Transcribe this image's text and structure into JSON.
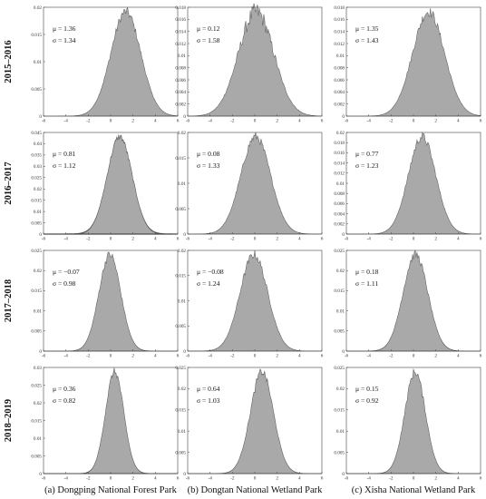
{
  "chart_data": {
    "type": "histogram-grid",
    "row_labels": [
      "2015–2016",
      "2016–2017",
      "2017–2018",
      "2018–2019"
    ],
    "column_labels": [
      "(a) Dongping National Forest Park",
      "(b) Dongtan National Wetland Park",
      "(c) Xisha National Wetland Park"
    ],
    "x_range": [
      -6,
      6
    ],
    "x_ticks": [
      "-6",
      "-4",
      "-2",
      "0",
      "2",
      "4",
      "6"
    ],
    "fill_color": "#a9a9a9",
    "edge_color": "#555555",
    "panels": [
      {
        "row": 0,
        "col": 0,
        "mu_label": "μ = 1.36",
        "sigma_label": "σ = 1.34",
        "mu": 1.36,
        "sigma": 1.34,
        "y_max": 0.02,
        "y_ticks": [
          "0",
          "0.005",
          "0.01",
          "0.015",
          "0.02"
        ]
      },
      {
        "row": 0,
        "col": 1,
        "mu_label": "μ = 0.12",
        "sigma_label": "σ = 1.58",
        "mu": 0.12,
        "sigma": 1.58,
        "y_max": 0.018,
        "y_ticks": [
          "0",
          "0.002",
          "0.004",
          "0.006",
          "0.008",
          "0.01",
          "0.012",
          "0.014",
          "0.016",
          "0.018"
        ]
      },
      {
        "row": 0,
        "col": 2,
        "mu_label": "μ = 1.35",
        "sigma_label": "σ = 1.43",
        "mu": 1.35,
        "sigma": 1.43,
        "y_max": 0.018,
        "y_ticks": [
          "0",
          "0.002",
          "0.004",
          "0.006",
          "0.008",
          "0.01",
          "0.012",
          "0.014",
          "0.016",
          "0.018"
        ]
      },
      {
        "row": 1,
        "col": 0,
        "mu_label": "μ = 0.81",
        "sigma_label": "σ = 1.12",
        "mu": 0.81,
        "sigma": 1.12,
        "y_max": 0.045,
        "y_ticks": [
          "0",
          "0.005",
          "0.01",
          "0.015",
          "0.02",
          "0.025",
          "0.03",
          "0.035",
          "0.04",
          "0.045"
        ]
      },
      {
        "row": 1,
        "col": 1,
        "mu_label": "μ = 0.08",
        "sigma_label": "σ = 1.33",
        "mu": 0.08,
        "sigma": 1.33,
        "y_max": 0.02,
        "y_ticks": [
          "0",
          "0.005",
          "0.01",
          "0.015",
          "0.02"
        ]
      },
      {
        "row": 1,
        "col": 2,
        "mu_label": "μ = 0.77",
        "sigma_label": "σ = 1.23",
        "mu": 0.77,
        "sigma": 1.23,
        "y_max": 0.02,
        "y_ticks": [
          "0",
          "0.002",
          "0.004",
          "0.006",
          "0.008",
          "0.01",
          "0.012",
          "0.014",
          "0.016",
          "0.018",
          "0.02"
        ]
      },
      {
        "row": 2,
        "col": 0,
        "mu_label": "μ = −0.07",
        "sigma_label": "σ = 0.98",
        "mu": -0.07,
        "sigma": 0.98,
        "y_max": 0.025,
        "y_ticks": [
          "0",
          "0.005",
          "0.01",
          "0.015",
          "0.02",
          "0.025"
        ]
      },
      {
        "row": 2,
        "col": 1,
        "mu_label": "μ = −0.08",
        "sigma_label": "σ = 1.24",
        "mu": -0.08,
        "sigma": 1.24,
        "y_max": 0.02,
        "y_ticks": [
          "0",
          "0.005",
          "0.01",
          "0.015",
          "0.02"
        ]
      },
      {
        "row": 2,
        "col": 2,
        "mu_label": "μ = 0.18",
        "sigma_label": "σ = 1.11",
        "mu": 0.18,
        "sigma": 1.11,
        "y_max": 0.025,
        "y_ticks": [
          "0",
          "0.005",
          "0.01",
          "0.015",
          "0.02",
          "0.025"
        ]
      },
      {
        "row": 3,
        "col": 0,
        "mu_label": "μ = 0.36",
        "sigma_label": "σ = 0.82",
        "mu": 0.36,
        "sigma": 0.82,
        "y_max": 0.03,
        "y_ticks": [
          "0",
          "0.005",
          "0.01",
          "0.015",
          "0.02",
          "0.025",
          "0.03"
        ]
      },
      {
        "row": 3,
        "col": 1,
        "mu_label": "μ = 0.64",
        "sigma_label": "σ = 1.03",
        "mu": 0.64,
        "sigma": 1.03,
        "y_max": 0.025,
        "y_ticks": [
          "0",
          "0.005",
          "0.01",
          "0.015",
          "0.02",
          "0.025"
        ]
      },
      {
        "row": 3,
        "col": 2,
        "mu_label": "μ = 0.15",
        "sigma_label": "σ = 0.92",
        "mu": 0.15,
        "sigma": 0.92,
        "y_max": 0.025,
        "y_ticks": [
          "0",
          "0.005",
          "0.01",
          "0.015",
          "0.02",
          "0.025"
        ]
      }
    ]
  }
}
